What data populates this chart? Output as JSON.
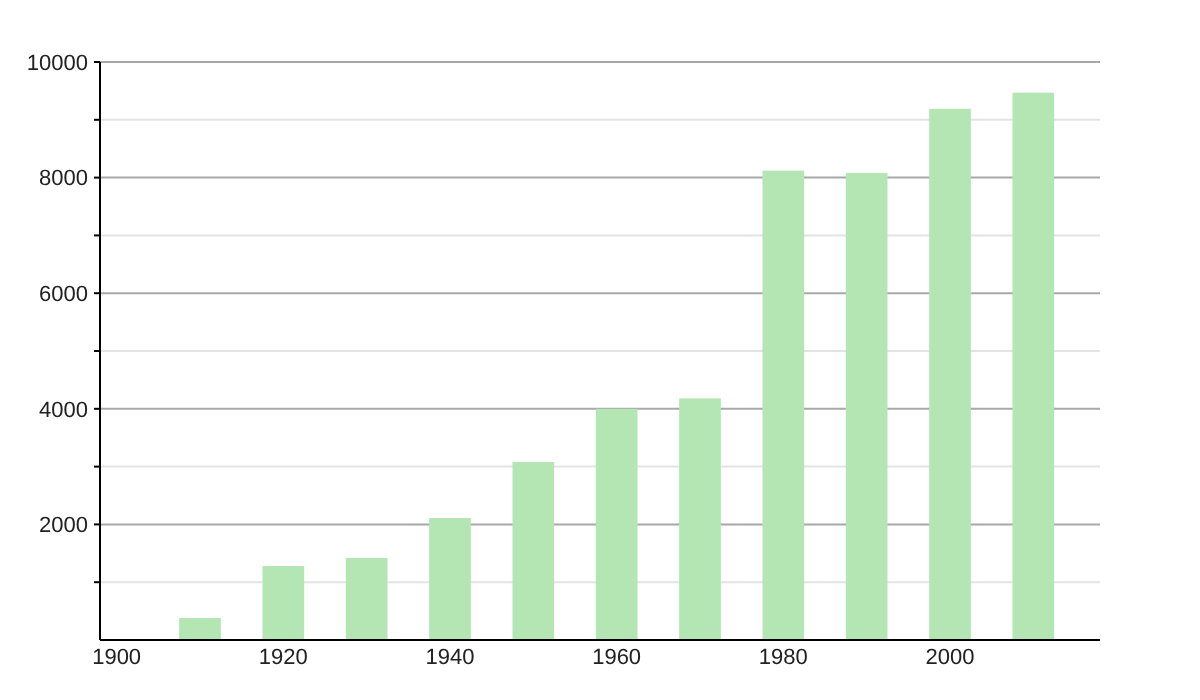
{
  "chart_data": {
    "type": "bar",
    "x": [
      1910,
      1920,
      1930,
      1940,
      1950,
      1960,
      1970,
      1980,
      1990,
      2000,
      2010
    ],
    "values": [
      380,
      1280,
      1420,
      2110,
      3080,
      4000,
      4180,
      8120,
      8080,
      9190,
      9470
    ],
    "color": "#b3e6b3",
    "xlim": [
      1898,
      2018
    ],
    "xticks": [
      1900,
      1920,
      1940,
      1960,
      1980,
      2000
    ],
    "ylim": [
      0,
      10000
    ],
    "yticks": [
      {
        "value": 1000,
        "label": null
      },
      2000,
      {
        "value": 3000,
        "label": null
      },
      4000,
      {
        "value": 5000,
        "label": null
      },
      6000,
      {
        "value": 7000,
        "label": null
      },
      8000,
      {
        "value": 9000,
        "label": null
      },
      10000
    ],
    "grid": "y"
  }
}
